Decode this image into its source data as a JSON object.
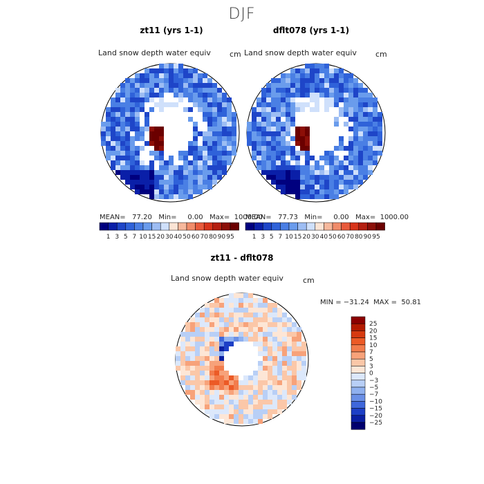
{
  "page": {
    "supertitle": "DJF"
  },
  "panels": [
    {
      "title": "zt11 (yrs 1-1)",
      "subtitle": "Land snow depth water equiv",
      "units": "cm",
      "stats": "MEAN=   77.20   Min=     0.00   Max=  1000.00"
    },
    {
      "title": "dflt078 (yrs 1-1)",
      "subtitle": "Land snow depth water equiv",
      "units": "cm",
      "stats": "MEAN=   77.73   Min=     0.00   Max=  1000.00"
    },
    {
      "title": "zt11 - dflt078",
      "subtitle": "Land snow depth water equiv",
      "units": "cm",
      "minmax": "MIN = −31.24  MAX =  50.81"
    }
  ],
  "chart_data": [
    {
      "type": "heatmap",
      "projection": "polar-stereographic",
      "title": "zt11 (yrs 1-1)",
      "variable": "Land snow depth water equiv",
      "units": "cm",
      "mean": 77.2,
      "min": 0.0,
      "max": 1000.0,
      "colorbar_levels": [
        1,
        3,
        5,
        7,
        10,
        15,
        20,
        30,
        40,
        50,
        60,
        70,
        80,
        90,
        95
      ],
      "colorbar_colors": [
        "#00007f",
        "#0a1fa8",
        "#1e45c8",
        "#2f62d9",
        "#4a7fe4",
        "#6a9cec",
        "#9dbdf3",
        "#cfe0fb",
        "#fbe4d5",
        "#f6b89c",
        "#f08c6a",
        "#e85a3b",
        "#d8341a",
        "#b51f10",
        "#8c0f08",
        "#6b0000"
      ]
    },
    {
      "type": "heatmap",
      "projection": "polar-stereographic",
      "title": "dflt078 (yrs 1-1)",
      "variable": "Land snow depth water equiv",
      "units": "cm",
      "mean": 77.73,
      "min": 0.0,
      "max": 1000.0,
      "colorbar_levels": [
        1,
        3,
        5,
        7,
        10,
        15,
        20,
        30,
        40,
        50,
        60,
        70,
        80,
        90,
        95
      ],
      "colorbar_colors": [
        "#00007f",
        "#0a1fa8",
        "#1e45c8",
        "#2f62d9",
        "#4a7fe4",
        "#6a9cec",
        "#9dbdf3",
        "#cfe0fb",
        "#fbe4d5",
        "#f6b89c",
        "#f08c6a",
        "#e85a3b",
        "#d8341a",
        "#b51f10",
        "#8c0f08",
        "#6b0000"
      ]
    },
    {
      "type": "heatmap",
      "projection": "polar-stereographic",
      "title": "zt11 - dflt078",
      "variable": "Land snow depth water equiv",
      "units": "cm",
      "min": -31.24,
      "max": 50.81,
      "colorbar_levels": [
        25,
        20,
        15,
        10,
        7,
        5,
        3,
        0,
        -3,
        -5,
        -7,
        -10,
        -15,
        -20,
        -25
      ],
      "colorbar_labels": [
        "25",
        "20",
        "15",
        "10",
        "7",
        "5",
        "3",
        "0",
        "−3",
        "−5",
        "−7",
        "−10",
        "−15",
        "−20",
        "−25"
      ],
      "colorbar_colors": [
        "#8c0000",
        "#b31a00",
        "#d63a10",
        "#ec5a26",
        "#f27c4c",
        "#f7a27a",
        "#fbc7a8",
        "#fde6d6",
        "#dce8fb",
        "#b8cff6",
        "#8fb0ef",
        "#6a8fe6",
        "#3f67db",
        "#1d3fc6",
        "#0a1fa3",
        "#00006e"
      ]
    }
  ]
}
